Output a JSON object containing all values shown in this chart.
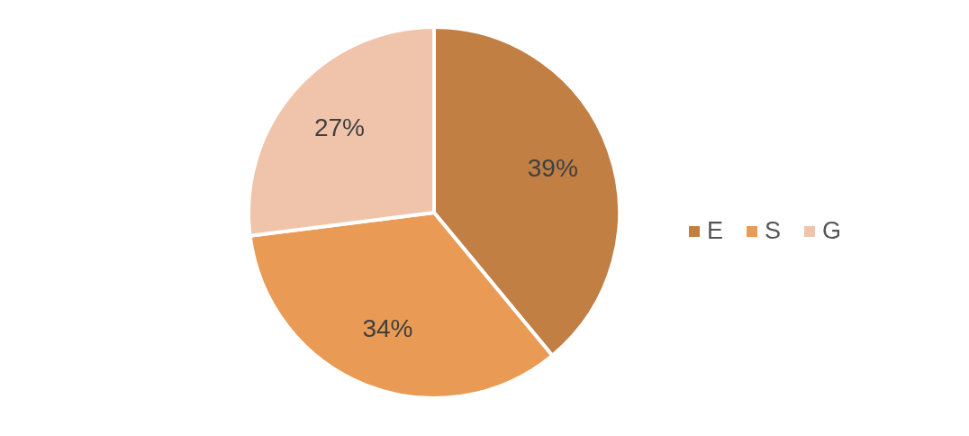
{
  "chart_data": {
    "type": "pie",
    "categories": [
      "E",
      "S",
      "G"
    ],
    "values": [
      39,
      34,
      27
    ],
    "colors": [
      "#c17f44",
      "#e99b55",
      "#f0c4ab"
    ],
    "value_labels": [
      "39%",
      "34%",
      "27%"
    ],
    "legend": "right"
  }
}
